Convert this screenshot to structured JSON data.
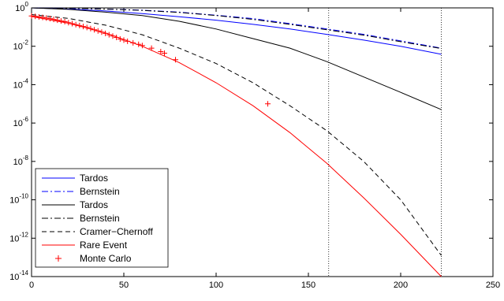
{
  "chart_data": {
    "type": "line",
    "title": "",
    "xlabel": "",
    "ylabel": "",
    "xlim": [
      0,
      250
    ],
    "ylim_log10": [
      -14,
      0
    ],
    "yscale": "log",
    "x_ticks": [
      "0",
      "50",
      "100",
      "150",
      "200",
      "250"
    ],
    "y_ticks": [
      {
        "base": "10",
        "exp": "0",
        "log": 0
      },
      {
        "base": "10",
        "exp": "-2",
        "log": -2
      },
      {
        "base": "10",
        "exp": "-4",
        "log": -4
      },
      {
        "base": "10",
        "exp": "-6",
        "log": -6
      },
      {
        "base": "10",
        "exp": "-8",
        "log": -8
      },
      {
        "base": "10",
        "exp": "-10",
        "log": -10
      },
      {
        "base": "10",
        "exp": "-12",
        "log": -12
      },
      {
        "base": "10",
        "exp": "-14",
        "log": -14
      }
    ],
    "vlines": [
      161,
      222
    ],
    "legend_position": "bottom-left",
    "series": [
      {
        "name": "Tardos",
        "color": "#0000ff",
        "dash": "solid",
        "marker": "none",
        "x": [
          0,
          20,
          40,
          60,
          80,
          100,
          120,
          140,
          160,
          180,
          200,
          222
        ],
        "log10_y": [
          0,
          -0.06,
          -0.16,
          -0.3,
          -0.46,
          -0.64,
          -0.86,
          -1.1,
          -1.38,
          -1.68,
          -2.0,
          -2.42
        ]
      },
      {
        "name": "Bernstein",
        "color": "#0000ff",
        "dash": "dashdot",
        "marker": "none",
        "x": [
          0,
          20,
          40,
          60,
          80,
          100,
          120,
          140,
          160,
          180,
          200,
          222
        ],
        "log10_y": [
          0,
          -0.02,
          -0.06,
          -0.12,
          -0.22,
          -0.38,
          -0.56,
          -0.82,
          -1.1,
          -1.38,
          -1.72,
          -2.1
        ]
      },
      {
        "name": "Tardos",
        "color": "#000000",
        "dash": "solid",
        "marker": "none",
        "x": [
          0,
          20,
          40,
          60,
          80,
          100,
          120,
          140,
          160,
          180,
          200,
          222
        ],
        "log10_y": [
          0,
          -0.08,
          -0.22,
          -0.4,
          -0.7,
          -1.1,
          -1.6,
          -2.1,
          -2.8,
          -3.6,
          -4.4,
          -5.3
        ]
      },
      {
        "name": "Bernstein",
        "color": "#000000",
        "dash": "dashdot",
        "marker": "none",
        "x": [
          0,
          20,
          40,
          60,
          80,
          100,
          120,
          140,
          160,
          180,
          200,
          222
        ],
        "log10_y": [
          0,
          -0.02,
          -0.06,
          -0.13,
          -0.24,
          -0.4,
          -0.6,
          -0.86,
          -1.14,
          -1.42,
          -1.76,
          -2.12
        ]
      },
      {
        "name": "Cramer−Chernoff",
        "color": "#000000",
        "dash": "dashed",
        "marker": "none",
        "x": [
          0,
          20,
          40,
          60,
          80,
          100,
          120,
          140,
          160,
          180,
          200,
          222
        ],
        "log10_y": [
          -0.35,
          -0.55,
          -0.9,
          -1.4,
          -2.1,
          -2.9,
          -3.9,
          -5.1,
          -6.4,
          -8.0,
          -10.0,
          -12.9
        ]
      },
      {
        "name": "Rare Event",
        "color": "#ff0000",
        "dash": "solid",
        "marker": "none",
        "x": [
          0,
          20,
          40,
          60,
          80,
          100,
          120,
          140,
          160,
          180,
          200,
          222
        ],
        "log10_y": [
          -0.45,
          -0.8,
          -1.3,
          -2.0,
          -2.85,
          -3.9,
          -5.1,
          -6.5,
          -8.1,
          -9.9,
          -11.8,
          -14.0
        ]
      },
      {
        "name": "Monte Carlo",
        "color": "#ff0000",
        "dash": "none",
        "marker": "+",
        "x": [
          0,
          2,
          4,
          6,
          8,
          10,
          12,
          14,
          16,
          18,
          20,
          22,
          24,
          26,
          28,
          30,
          32,
          34,
          36,
          38,
          40,
          42,
          44,
          46,
          48,
          50,
          52,
          55,
          58,
          60,
          65,
          70,
          72,
          78,
          128
        ],
        "log10_y": [
          -0.42,
          -0.44,
          -0.47,
          -0.5,
          -0.53,
          -0.56,
          -0.6,
          -0.64,
          -0.68,
          -0.72,
          -0.77,
          -0.82,
          -0.87,
          -0.92,
          -0.97,
          -1.02,
          -1.08,
          -1.14,
          -1.2,
          -1.26,
          -1.33,
          -1.4,
          -1.47,
          -1.54,
          -1.62,
          -1.68,
          -1.74,
          -1.82,
          -1.9,
          -1.96,
          -2.1,
          -2.28,
          -2.36,
          -2.7,
          -5.0
        ]
      }
    ]
  }
}
